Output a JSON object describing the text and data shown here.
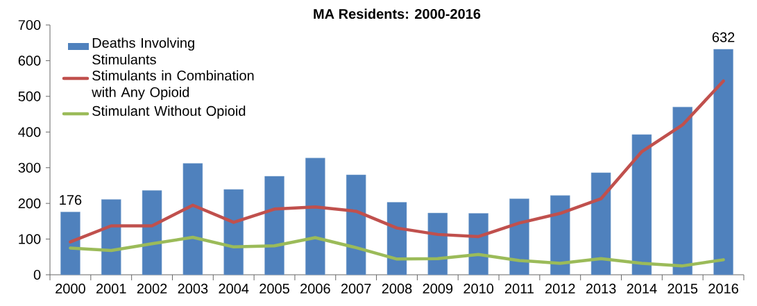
{
  "chart_data": {
    "type": "bar",
    "title": "MA Residents: 2000-2016",
    "categories": [
      "2000",
      "2001",
      "2002",
      "2003",
      "2004",
      "2005",
      "2006",
      "2007",
      "2008",
      "2009",
      "2010",
      "2011",
      "2012",
      "2013",
      "2014",
      "2015",
      "2016"
    ],
    "series": [
      {
        "name": "Deaths Involving Stimulants",
        "color": "#4f81bd",
        "values": [
          176,
          211,
          236,
          312,
          239,
          276,
          327,
          280,
          203,
          173,
          172,
          213,
          222,
          286,
          393,
          470,
          632
        ],
        "value_labels": [
          "176",
          null,
          null,
          null,
          null,
          null,
          null,
          null,
          null,
          null,
          null,
          null,
          null,
          null,
          null,
          null,
          "632"
        ]
      },
      {
        "name": "Stimulants in Combination with Any Opioid",
        "type": "line",
        "color": "#c0504d",
        "values": [
          92,
          137,
          137,
          195,
          147,
          184,
          190,
          178,
          131,
          113,
          107,
          145,
          172,
          213,
          345,
          420,
          543
        ]
      },
      {
        "name": "Stimulant Without Opioid",
        "type": "line",
        "color": "#9bbb59",
        "values": [
          75,
          68,
          87,
          105,
          78,
          81,
          104,
          76,
          44,
          45,
          57,
          40,
          32,
          45,
          32,
          25,
          42
        ]
      }
    ],
    "ylim": [
      0,
      700
    ],
    "yticks": [
      0,
      100,
      200,
      300,
      400,
      500,
      600,
      700
    ],
    "grid": false,
    "legend": "top left",
    "marker": "none",
    "line_style": "solid"
  }
}
